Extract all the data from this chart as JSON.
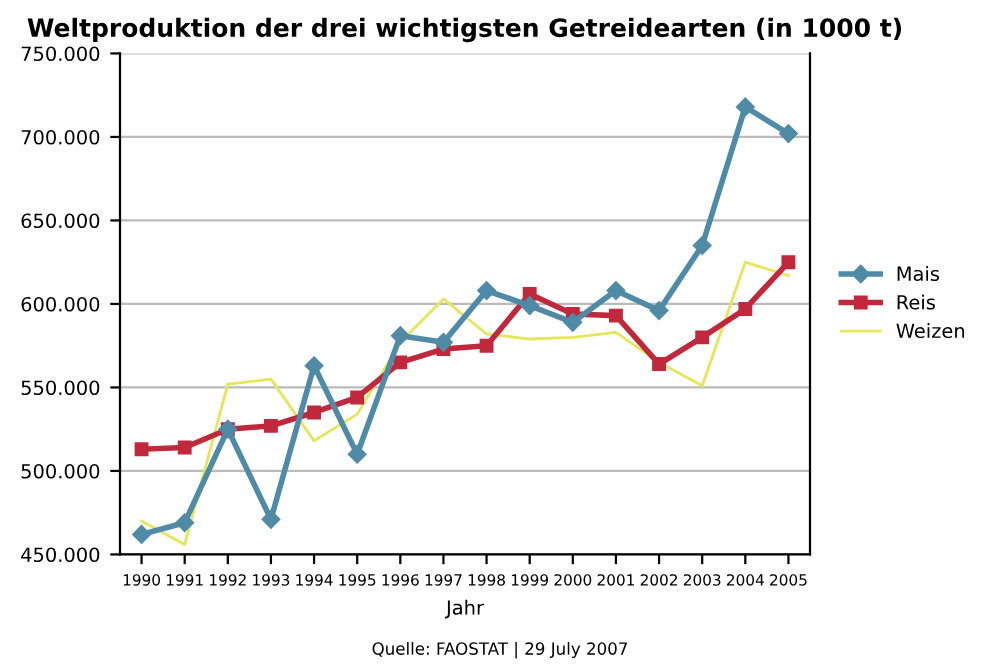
{
  "chart_data": {
    "type": "line",
    "title": "Weltproduktion der drei wichtigsten Getreidearten (in 1000 t)",
    "xlabel": "Jahr",
    "categories": [
      "1990",
      "1991",
      "1992",
      "1993",
      "1994",
      "1995",
      "1996",
      "1997",
      "1998",
      "1999",
      "2000",
      "2001",
      "2002",
      "2003",
      "2004",
      "2005"
    ],
    "series": [
      {
        "name": "Mais",
        "color": "#4f8aa6",
        "marker": "diamond",
        "values": [
          462,
          469,
          525,
          471,
          563,
          510,
          581,
          577,
          608,
          599,
          589,
          608,
          596,
          635,
          718,
          702
        ]
      },
      {
        "name": "Reis",
        "color": "#c0283c",
        "marker": "square",
        "values": [
          513,
          514,
          525,
          527,
          535,
          544,
          565,
          573,
          575,
          606,
          594,
          593,
          564,
          580,
          597,
          625
        ]
      },
      {
        "name": "Weizen",
        "color": "#e6e65a",
        "marker": "none",
        "values": [
          470,
          456,
          552,
          555,
          518,
          534,
          577,
          603,
          582,
          579,
          580,
          583,
          565,
          551,
          625,
          617
        ]
      }
    ],
    "ylim": [
      450,
      750
    ],
    "yticks": [
      {
        "value": 450,
        "label": "450.000"
      },
      {
        "value": 500,
        "label": "500.000"
      },
      {
        "value": 550,
        "label": "550.000"
      },
      {
        "value": 600,
        "label": "600.000"
      },
      {
        "value": 650,
        "label": "650.000"
      },
      {
        "value": 700,
        "label": "700.000"
      },
      {
        "value": 750,
        "label": "750.000"
      }
    ],
    "grid": "y",
    "legend": "right",
    "annotations": [
      "Quelle: FAOSTAT | 29 July 2007"
    ]
  }
}
